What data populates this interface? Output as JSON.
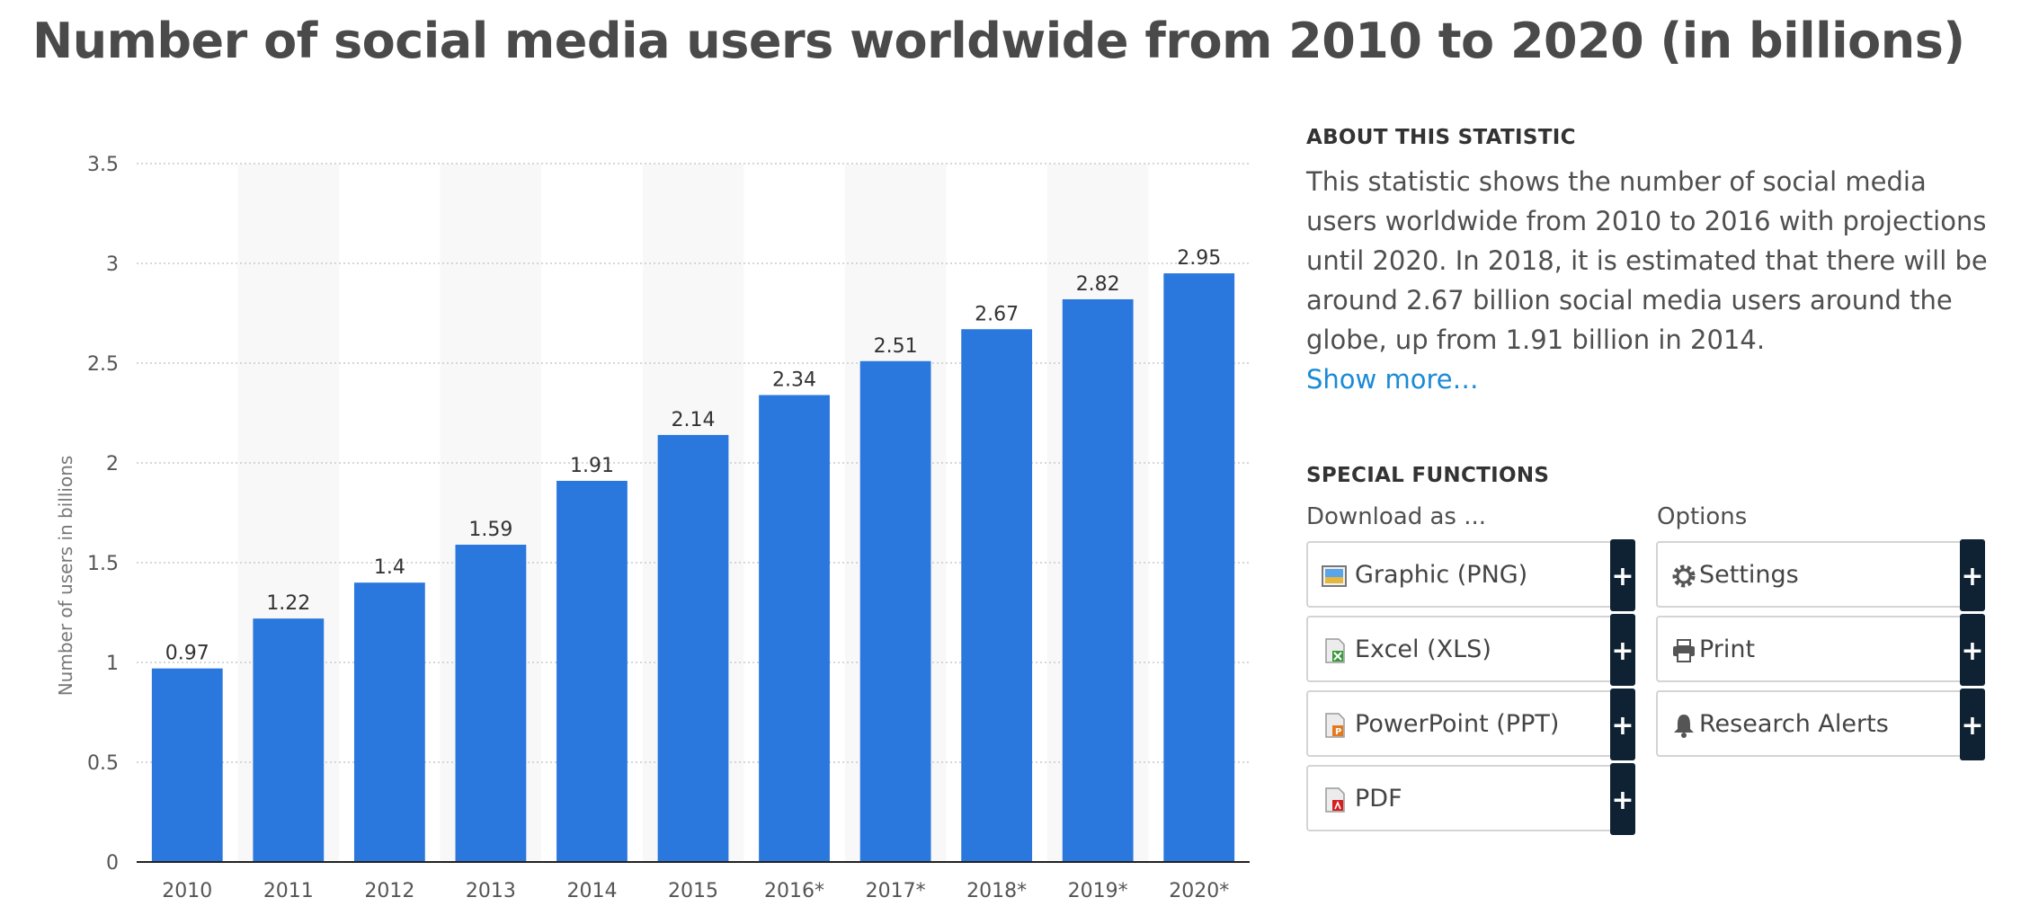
{
  "title": "Number of social media users worldwide from 2010 to 2020 (in billions)",
  "about": {
    "heading": "ABOUT THIS STATISTIC",
    "text": "This statistic shows the number of social media users worldwide from 2010 to 2016 with projections until 2020. In 2018, it is estimated that there will be around 2.67 billion social media users around the globe, up from 1.91 billion in 2014.",
    "show_more": "Show more…"
  },
  "special": {
    "heading": "SPECIAL FUNCTIONS",
    "download_label": "Download as ...",
    "options_label": "Options",
    "download_buttons": [
      "Graphic (PNG)",
      "Excel (XLS)",
      "PowerPoint (PPT)",
      "PDF"
    ],
    "option_buttons": [
      "Settings",
      "Print",
      "Research Alerts"
    ],
    "plus": "+"
  },
  "colors": {
    "bar": "#2a77dd",
    "band": "#f8f8f8",
    "grid": "#c9c9c9",
    "link": "#1a8ad6",
    "plus_bg": "#0e2233"
  },
  "chart_data": {
    "type": "bar",
    "title": "Number of social media users worldwide from 2010 to 2020 (in billions)",
    "categories": [
      "2010",
      "2011",
      "2012",
      "2013",
      "2014",
      "2015",
      "2016*",
      "2017*",
      "2018*",
      "2019*",
      "2020*"
    ],
    "values": [
      0.97,
      1.22,
      1.4,
      1.59,
      1.91,
      2.14,
      2.34,
      2.51,
      2.67,
      2.82,
      2.95
    ],
    "value_labels": [
      "0.97",
      "1.22",
      "1.4",
      "1.59",
      "1.91",
      "2.14",
      "2.34",
      "2.51",
      "2.67",
      "2.82",
      "2.95"
    ],
    "xlabel": "",
    "ylabel": "Number of users in billions",
    "ylim": [
      0,
      3.5
    ],
    "yticks": [
      "0",
      "0.5",
      "1",
      "1.5",
      "2",
      "2.5",
      "3",
      "3.5"
    ],
    "grid": true
  }
}
